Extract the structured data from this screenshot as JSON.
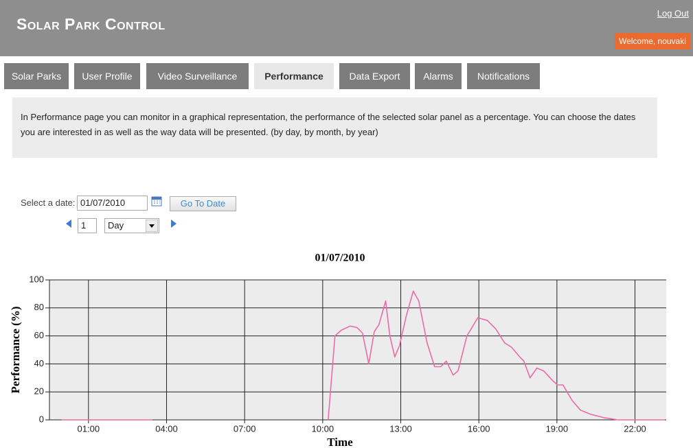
{
  "header": {
    "title": "Solar Park Control",
    "logout": "Log Out",
    "welcome": "Welcome, nouvaki"
  },
  "tabs": [
    "Solar Parks",
    "User Profile",
    "Video Surveillance",
    "Performance",
    "Data Export",
    "Alarms",
    "Notifications"
  ],
  "description": "In Performance page you can monitor in a graphical representation, the performance of the selected solar panel as a percentage. You can choose the dates you are interested in as well as the way data will be presented. (by day, by month, by year)",
  "date_selector": {
    "label": "Select a date:",
    "date": "01/07/2010",
    "button": "Go To Date",
    "step": 1,
    "unit": "Day"
  },
  "chart_data": {
    "type": "line",
    "title": "01/07/2010",
    "x_label": "Time",
    "y_label": "Performance (%)",
    "x": [
      -0.03,
      3.45,
      6.8,
      10.21,
      10.47,
      10.71,
      11.05,
      11.32,
      11.53,
      11.77,
      11.98,
      12.16,
      12.42,
      12.58,
      12.77,
      12.95,
      13.22,
      13.48,
      13.69,
      14.01,
      14.3,
      14.54,
      14.75,
      15.01,
      15.2,
      15.54,
      15.96,
      16.33,
      16.65,
      16.99,
      17.25,
      17.57,
      17.73,
      17.97,
      18.23,
      18.49,
      18.84,
      19.02,
      19.23,
      19.58,
      19.9,
      20.29,
      20.82,
      21.35,
      23.14
    ],
    "series": [
      {
        "color": "#ec6aa8",
        "values": [
          0,
          0,
          null,
          0,
          60,
          64,
          67,
          66,
          62,
          40,
          63,
          68,
          85,
          60,
          45,
          53,
          75,
          92,
          85,
          55,
          38,
          38,
          42,
          32,
          35,
          60,
          73,
          71,
          65,
          55,
          52,
          45,
          42,
          30,
          37,
          35,
          28,
          25,
          25,
          14,
          7,
          4,
          1.5,
          0,
          0
        ]
      }
    ],
    "xlim": [
      -0.5,
      23.2
    ],
    "ylim": [
      0,
      100
    ],
    "xticks": [
      {
        "value": 1,
        "label": "01:00"
      },
      {
        "value": 4,
        "label": "04:00"
      },
      {
        "value": 7,
        "label": "07:00"
      },
      {
        "value": 10,
        "label": "10:00"
      },
      {
        "value": 13,
        "label": "13:00"
      },
      {
        "value": 16,
        "label": "16:00"
      },
      {
        "value": 19,
        "label": "19:00"
      },
      {
        "value": 22,
        "label": "22:00"
      }
    ],
    "yticks": [
      0,
      20,
      40,
      60,
      80,
      100
    ],
    "grid": true
  }
}
